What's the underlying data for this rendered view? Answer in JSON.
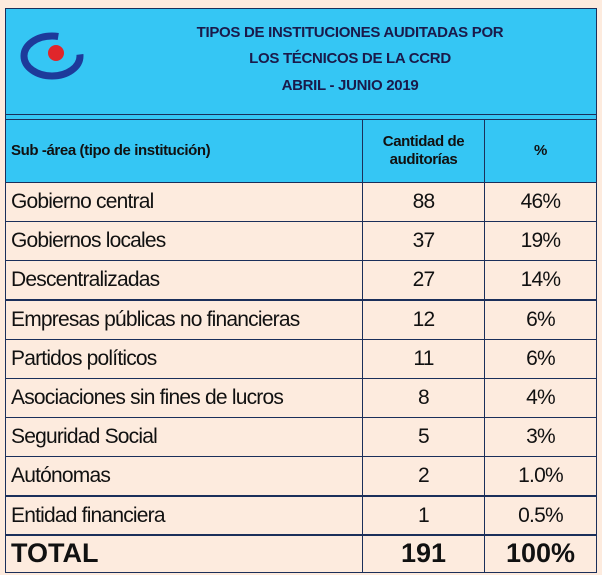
{
  "header": {
    "title_lines": [
      "TIPOS DE INSTITUCIONES AUDITADAS POR",
      "LOS TÉCNICOS DE LA CCRD",
      "ABRIL - JUNIO 2019"
    ]
  },
  "table": {
    "columns": [
      "Sub -área (tipo de institución)",
      "Cantidad de auditorías",
      "%"
    ],
    "rows": [
      [
        "Gobierno central",
        "88",
        "46%"
      ],
      [
        "Gobiernos  locales",
        "37",
        "19%"
      ],
      [
        "Descentralizadas",
        "27",
        "14%"
      ],
      [
        "Empresas públicas no financieras",
        "12",
        "6%"
      ],
      [
        "Partidos políticos",
        "11",
        "6%"
      ],
      [
        "Asociaciones sin fines de lucros",
        "8",
        "4%"
      ],
      [
        "Seguridad Social",
        "5",
        "3%"
      ],
      [
        "Autónomas",
        "2",
        "1.0%"
      ],
      [
        "Entidad financiera",
        "1",
        "0.5%"
      ]
    ],
    "total": [
      "TOTAL",
      "191",
      "100%"
    ]
  }
}
